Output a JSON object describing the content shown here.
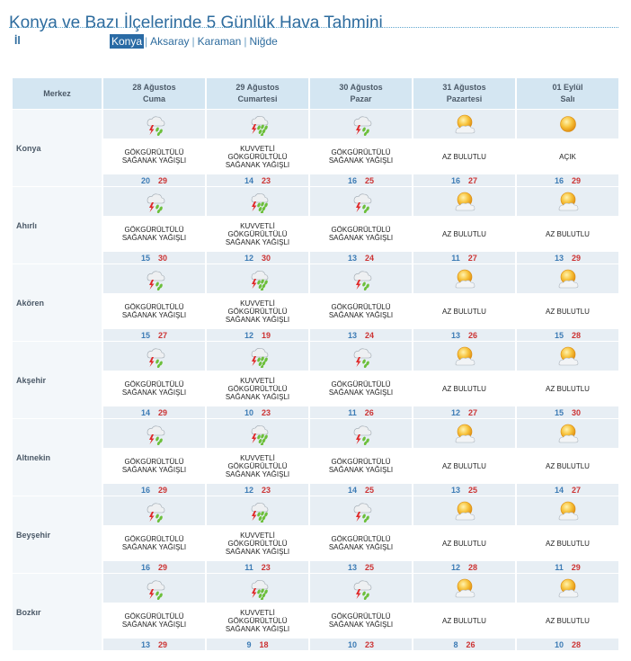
{
  "page": {
    "title": "Konya ve Bazı İlçelerinde 5 Günlük Hava Tahmini",
    "il_label": "İl",
    "cities": [
      "Konya",
      "Aksaray",
      "Karaman",
      "Niğde"
    ],
    "active_city": "Konya"
  },
  "table": {
    "header_location": "Merkez",
    "days": [
      {
        "date": "28 Ağustos",
        "weekday": "Cuma"
      },
      {
        "date": "29 Ağustos",
        "weekday": "Cumartesi"
      },
      {
        "date": "30 Ağustos",
        "weekday": "Pazar"
      },
      {
        "date": "31 Ağustos",
        "weekday": "Pazartesi"
      },
      {
        "date": "01 Eylül",
        "weekday": "Salı"
      }
    ],
    "rows": [
      {
        "name": "Konya",
        "cells": [
          {
            "icon": "thunder-rain-icon",
            "lines": [
              "GÖKGÜRÜLTÜLÜ",
              "SAĞANAK YAĞIŞLI"
            ],
            "min": "20",
            "max": "29"
          },
          {
            "icon": "heavy-thunder-rain-icon",
            "lines": [
              "KUVVETLİ",
              "GÖKGÜRÜLTÜLÜ",
              "SAĞANAK YAĞIŞLI"
            ],
            "min": "14",
            "max": "23"
          },
          {
            "icon": "thunder-rain-icon",
            "lines": [
              "GÖKGÜRÜLTÜLÜ",
              "SAĞANAK YAĞIŞLI"
            ],
            "min": "16",
            "max": "25"
          },
          {
            "icon": "partly-cloudy-icon",
            "lines": [
              "AZ BULUTLU"
            ],
            "min": "16",
            "max": "27"
          },
          {
            "icon": "sunny-icon",
            "lines": [
              "AÇIK"
            ],
            "min": "16",
            "max": "29"
          }
        ]
      },
      {
        "name": "Ahırlı",
        "cells": [
          {
            "icon": "thunder-rain-icon",
            "lines": [
              "GÖKGÜRÜLTÜLÜ",
              "SAĞANAK YAĞIŞLI"
            ],
            "min": "15",
            "max": "30"
          },
          {
            "icon": "heavy-thunder-rain-icon",
            "lines": [
              "KUVVETLİ",
              "GÖKGÜRÜLTÜLÜ",
              "SAĞANAK YAĞIŞLI"
            ],
            "min": "12",
            "max": "30"
          },
          {
            "icon": "thunder-rain-icon",
            "lines": [
              "GÖKGÜRÜLTÜLÜ",
              "SAĞANAK YAĞIŞLI"
            ],
            "min": "13",
            "max": "24"
          },
          {
            "icon": "partly-cloudy-icon",
            "lines": [
              "AZ BULUTLU"
            ],
            "min": "11",
            "max": "27"
          },
          {
            "icon": "partly-cloudy-icon",
            "lines": [
              "AZ BULUTLU"
            ],
            "min": "13",
            "max": "29"
          }
        ]
      },
      {
        "name": "Akören",
        "cells": [
          {
            "icon": "thunder-rain-icon",
            "lines": [
              "GÖKGÜRÜLTÜLÜ",
              "SAĞANAK YAĞIŞLI"
            ],
            "min": "15",
            "max": "27"
          },
          {
            "icon": "heavy-thunder-rain-icon",
            "lines": [
              "KUVVETLİ",
              "GÖKGÜRÜLTÜLÜ",
              "SAĞANAK YAĞIŞLI"
            ],
            "min": "12",
            "max": "19"
          },
          {
            "icon": "thunder-rain-icon",
            "lines": [
              "GÖKGÜRÜLTÜLÜ",
              "SAĞANAK YAĞIŞLI"
            ],
            "min": "13",
            "max": "24"
          },
          {
            "icon": "partly-cloudy-icon",
            "lines": [
              "AZ BULUTLU"
            ],
            "min": "13",
            "max": "26"
          },
          {
            "icon": "partly-cloudy-icon",
            "lines": [
              "AZ BULUTLU"
            ],
            "min": "15",
            "max": "28"
          }
        ]
      },
      {
        "name": "Akşehir",
        "cells": [
          {
            "icon": "thunder-rain-icon",
            "lines": [
              "GÖKGÜRÜLTÜLÜ",
              "SAĞANAK YAĞIŞLI"
            ],
            "min": "14",
            "max": "29"
          },
          {
            "icon": "heavy-thunder-rain-icon",
            "lines": [
              "KUVVETLİ",
              "GÖKGÜRÜLTÜLÜ",
              "SAĞANAK YAĞIŞLI"
            ],
            "min": "10",
            "max": "23"
          },
          {
            "icon": "thunder-rain-icon",
            "lines": [
              "GÖKGÜRÜLTÜLÜ",
              "SAĞANAK YAĞIŞLI"
            ],
            "min": "11",
            "max": "26"
          },
          {
            "icon": "partly-cloudy-icon",
            "lines": [
              "AZ BULUTLU"
            ],
            "min": "12",
            "max": "27"
          },
          {
            "icon": "partly-cloudy-icon",
            "lines": [
              "AZ BULUTLU"
            ],
            "min": "15",
            "max": "30"
          }
        ]
      },
      {
        "name": "Altınekin",
        "cells": [
          {
            "icon": "thunder-rain-icon",
            "lines": [
              "GÖKGÜRÜLTÜLÜ",
              "SAĞANAK YAĞIŞLI"
            ],
            "min": "16",
            "max": "29"
          },
          {
            "icon": "heavy-thunder-rain-icon",
            "lines": [
              "KUVVETLİ",
              "GÖKGÜRÜLTÜLÜ",
              "SAĞANAK YAĞIŞLI"
            ],
            "min": "12",
            "max": "23"
          },
          {
            "icon": "thunder-rain-icon",
            "lines": [
              "GÖKGÜRÜLTÜLÜ",
              "SAĞANAK YAĞIŞLI"
            ],
            "min": "14",
            "max": "25"
          },
          {
            "icon": "partly-cloudy-icon",
            "lines": [
              "AZ BULUTLU"
            ],
            "min": "13",
            "max": "25"
          },
          {
            "icon": "partly-cloudy-icon",
            "lines": [
              "AZ BULUTLU"
            ],
            "min": "14",
            "max": "27"
          }
        ]
      },
      {
        "name": "Beyşehir",
        "cells": [
          {
            "icon": "thunder-rain-icon",
            "lines": [
              "GÖKGÜRÜLTÜLÜ",
              "SAĞANAK YAĞIŞLI"
            ],
            "min": "16",
            "max": "29"
          },
          {
            "icon": "heavy-thunder-rain-icon",
            "lines": [
              "KUVVETLİ",
              "GÖKGÜRÜLTÜLÜ",
              "SAĞANAK YAĞIŞLI"
            ],
            "min": "11",
            "max": "23"
          },
          {
            "icon": "thunder-rain-icon",
            "lines": [
              "GÖKGÜRÜLTÜLÜ",
              "SAĞANAK YAĞIŞLI"
            ],
            "min": "13",
            "max": "25"
          },
          {
            "icon": "partly-cloudy-icon",
            "lines": [
              "AZ BULUTLU"
            ],
            "min": "12",
            "max": "28"
          },
          {
            "icon": "partly-cloudy-icon",
            "lines": [
              "AZ BULUTLU"
            ],
            "min": "11",
            "max": "29"
          }
        ]
      },
      {
        "name": "Bozkır",
        "cells": [
          {
            "icon": "thunder-rain-icon",
            "lines": [
              "GÖKGÜRÜLTÜLÜ",
              "SAĞANAK YAĞIŞLI"
            ],
            "min": "13",
            "max": "29"
          },
          {
            "icon": "heavy-thunder-rain-icon",
            "lines": [
              "KUVVETLİ",
              "GÖKGÜRÜLTÜLÜ",
              "SAĞANAK YAĞIŞLI"
            ],
            "min": "9",
            "max": "18"
          },
          {
            "icon": "thunder-rain-icon",
            "lines": [
              "GÖKGÜRÜLTÜLÜ",
              "SAĞANAK YAĞIŞLI"
            ],
            "min": "10",
            "max": "23"
          },
          {
            "icon": "partly-cloudy-icon",
            "lines": [
              "AZ BULUTLU"
            ],
            "min": "8",
            "max": "26"
          },
          {
            "icon": "partly-cloudy-icon",
            "lines": [
              "AZ BULUTLU"
            ],
            "min": "10",
            "max": "28"
          }
        ]
      }
    ]
  },
  "colors": {
    "title": "#2e6c9e",
    "header_bg": "#d4e6f2",
    "row_band": "#e7eef4",
    "temp_min": "#3c7bb5",
    "temp_max": "#cc3333",
    "active_tab_bg": "#2a6ba5"
  }
}
